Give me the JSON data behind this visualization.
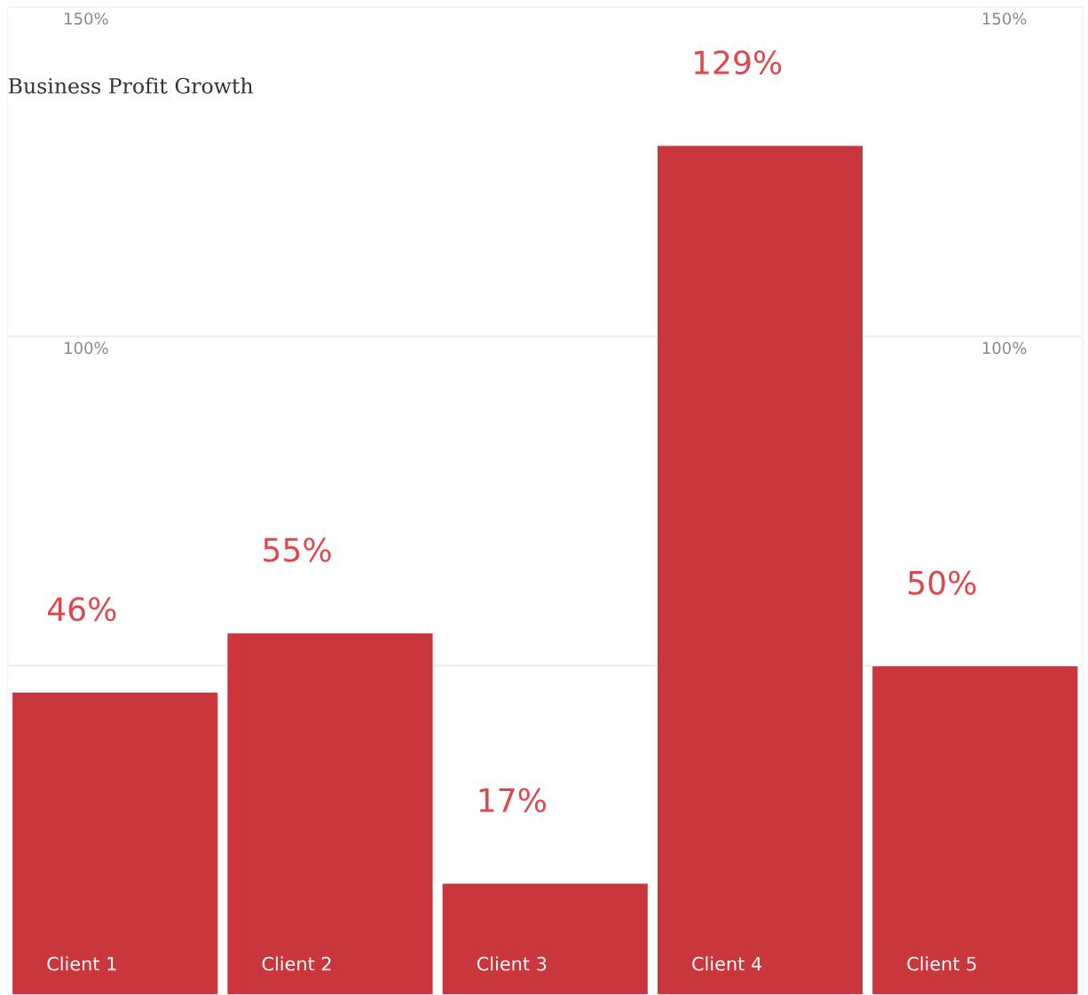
{
  "chart_data": {
    "type": "bar",
    "title": "Business Profit Growth",
    "categories": [
      "Client 1",
      "Client 2",
      "Client 3",
      "Client 4",
      "Client 5"
    ],
    "values": [
      46,
      55,
      17,
      129,
      50
    ],
    "value_labels": [
      "46%",
      "55%",
      "17%",
      "129%",
      "50%"
    ],
    "color": "#c9363c",
    "ylim": [
      0,
      150
    ],
    "yticks": [
      {
        "value": 50,
        "label": null
      },
      {
        "value": 100,
        "label": "100%"
      },
      {
        "value": 150,
        "label": "150%"
      }
    ],
    "y2lim": [
      0,
      150
    ],
    "y2ticks": [
      {
        "value": 50,
        "label": null
      },
      {
        "value": 100,
        "label": "100%"
      },
      {
        "value": 150,
        "label": "150%"
      }
    ],
    "grid": "y"
  }
}
